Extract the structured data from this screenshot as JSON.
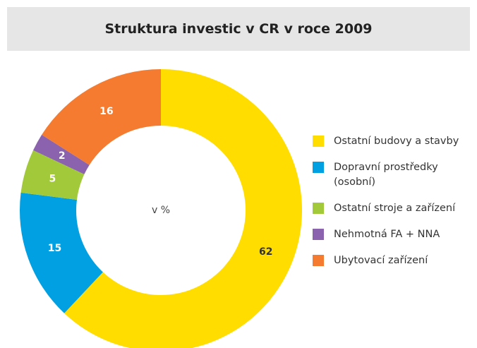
{
  "chart_data": {
    "type": "donut",
    "title": "Struktura investic v CR v roce 2009",
    "center_label": "v %",
    "categories": [
      "Ostatní budovy a stavby",
      "Dopravní prostředky\n(osobní)",
      "Ostatní stroje a zařízení",
      "Nehmotná FA + NNA",
      "Ubytovací zařízení"
    ],
    "values": [
      62,
      15,
      5,
      2,
      16
    ],
    "colors": [
      "#ffdd00",
      "#00a0e3",
      "#a2c93a",
      "#8b62ad",
      "#f47b30"
    ],
    "label_colors": [
      "#333333",
      "#ffffff",
      "#ffffff",
      "#ffffff",
      "#ffffff"
    ],
    "legend": "right"
  }
}
